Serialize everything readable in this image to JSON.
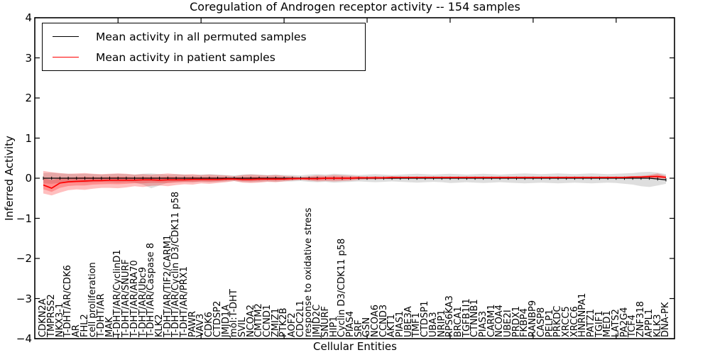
{
  "title": "Coregulation of Androgen receptor activity -- 154 samples",
  "axes": {
    "xlabel": "Cellular Entities",
    "ylabel": "Inferred Activity",
    "ytick_labels": [
      "4",
      "3",
      "2",
      "1",
      "0",
      "−1",
      "−2",
      "−3",
      "−4"
    ],
    "ylim": [
      -4,
      4
    ]
  },
  "legend": {
    "entries": [
      {
        "label": "Mean activity in all permuted samples",
        "color": "#000000"
      },
      {
        "label": "Mean activity in patient samples",
        "color": "#ff0000"
      }
    ]
  },
  "chart_data": {
    "type": "line",
    "title": "Coregulation of Androgen receptor activity -- 154 samples",
    "xlabel": "Cellular Entities",
    "ylabel": "Inferred Activity",
    "ylim": [
      -4,
      4
    ],
    "grid": false,
    "legend_position": "upper left",
    "inner_band_fraction": 0.5,
    "x_major_tick_indices": [
      9,
      19,
      29,
      39,
      49,
      59,
      69
    ],
    "categories": [
      "CDKN2A",
      "TMPRSS2",
      "NKX3-1",
      "T-DHT/AR/CDK6",
      "AR",
      "FHL2",
      "cell proliferation",
      "T-DHT/AR",
      "MAK",
      "T-DHT/AR/CyclinD1",
      "T-DHT/AR/SNURF",
      "T-DHT/AR/ARA70",
      "T-DHT/AR/Ubc9",
      "T-DHT/AR/Caspase 8",
      "KLK2",
      "T-DHT/AR/TIF2/CARM1",
      "T-DHT/AR/Cyclin D3/CDK11 p58",
      "T-DHT/AR/PRX1",
      "PAWR",
      "VAV3",
      "CDK6",
      "CTDSP2",
      "JMJD1A",
      "mol:T-DHT",
      "SVIL",
      "NCOA2",
      "CMTM2",
      "CCND1",
      "ZMIZ1",
      "PTK2B",
      "AOF2",
      "CDC2L1",
      "response to oxidative stress",
      "JMJD2C",
      "SNURF",
      "HIP1",
      "Cyclin D3/CDK11 p58",
      "PIAS4",
      "SRF",
      "GSN",
      "NCOA6",
      "CCND3",
      "AKT1",
      "PIAS1",
      "UBE3A",
      "TMF1",
      "CTDSP1",
      "UBA3",
      "NRIP1",
      "RPS6KA3",
      "BRCA1",
      "TGFB1I1",
      "CTNNB1",
      "PIAS3",
      "CARM1",
      "NCOA4",
      "UBE2I",
      "PRDX1",
      "FKBP4",
      "RANBP9",
      "CASP8",
      "PELP1",
      "PRKDC",
      "XRCC5",
      "XRCC6",
      "HNRNPA1",
      "PATZ1",
      "TGIF1",
      "MED1",
      "LATS2",
      "PA2G4",
      "TCF4",
      "ZNF318",
      "APPL1",
      "KLK3",
      "DNA-PK"
    ],
    "series": [
      {
        "name": "Mean activity in all permuted samples",
        "color": "#000000",
        "band_color": "rgba(0,0,0,0.13)",
        "values": [
          0,
          0,
          0,
          0,
          0,
          0,
          0,
          0,
          0,
          0,
          0,
          0,
          0,
          0,
          0,
          0,
          0,
          0,
          0,
          0,
          0,
          0,
          0,
          0,
          0,
          0,
          0,
          0,
          0,
          0,
          0,
          0,
          0,
          0,
          0,
          0,
          0,
          0,
          0,
          0,
          0,
          0,
          0,
          0,
          0,
          0,
          0,
          0,
          0,
          0,
          0,
          0,
          0,
          0,
          0,
          0,
          0,
          0,
          0,
          0,
          0,
          0,
          0,
          0,
          0,
          0,
          0,
          0,
          0,
          0,
          0,
          0,
          0,
          0,
          -0.02,
          -0.04
        ],
        "band_upper": [
          0.13,
          0.14,
          0.12,
          0.11,
          0.1,
          0.11,
          0.1,
          0.09,
          0.1,
          0.11,
          0.1,
          0.09,
          0.11,
          0.12,
          0.1,
          0.09,
          0.1,
          0.09,
          0.08,
          0.09,
          0.1,
          0.09,
          0.08,
          0.07,
          0.09,
          0.1,
          0.09,
          0.08,
          0.09,
          0.08,
          0.08,
          0.07,
          0.09,
          0.1,
          0.09,
          0.11,
          0.1,
          0.09,
          0.08,
          0.09,
          0.1,
          0.09,
          0.08,
          0.09,
          0.1,
          0.11,
          0.1,
          0.09,
          0.1,
          0.11,
          0.1,
          0.09,
          0.1,
          0.11,
          0.1,
          0.09,
          0.1,
          0.11,
          0.12,
          0.11,
          0.1,
          0.11,
          0.12,
          0.11,
          0.1,
          0.11,
          0.12,
          0.11,
          0.1,
          0.11,
          0.12,
          0.13,
          0.15,
          0.16,
          0.14,
          0.1
        ],
        "band_lower": [
          -0.13,
          -0.14,
          -0.12,
          -0.11,
          -0.1,
          -0.11,
          -0.1,
          -0.09,
          -0.1,
          -0.11,
          -0.1,
          -0.11,
          -0.16,
          -0.25,
          -0.18,
          -0.11,
          -0.1,
          -0.09,
          -0.1,
          -0.09,
          -0.1,
          -0.09,
          -0.08,
          -0.07,
          -0.09,
          -0.1,
          -0.09,
          -0.08,
          -0.09,
          -0.08,
          -0.08,
          -0.07,
          -0.09,
          -0.1,
          -0.09,
          -0.11,
          -0.1,
          -0.09,
          -0.08,
          -0.09,
          -0.1,
          -0.09,
          -0.08,
          -0.09,
          -0.1,
          -0.11,
          -0.1,
          -0.09,
          -0.1,
          -0.12,
          -0.11,
          -0.1,
          -0.11,
          -0.12,
          -0.11,
          -0.1,
          -0.11,
          -0.12,
          -0.13,
          -0.12,
          -0.11,
          -0.12,
          -0.13,
          -0.12,
          -0.11,
          -0.12,
          -0.13,
          -0.12,
          -0.11,
          -0.12,
          -0.14,
          -0.16,
          -0.2,
          -0.22,
          -0.18,
          -0.14
        ]
      },
      {
        "name": "Mean activity in patient samples",
        "color": "#ff0000",
        "band_color": "rgba(255,0,0,0.25)",
        "values": [
          -0.17,
          -0.25,
          -0.12,
          -0.09,
          -0.08,
          -0.07,
          -0.06,
          -0.06,
          -0.05,
          -0.05,
          -0.05,
          -0.05,
          -0.04,
          -0.04,
          -0.05,
          -0.04,
          -0.04,
          -0.04,
          -0.03,
          -0.03,
          -0.03,
          -0.03,
          -0.02,
          -0.02,
          -0.03,
          -0.03,
          -0.02,
          -0.02,
          -0.02,
          -0.02,
          -0.01,
          -0.01,
          -0.01,
          -0.01,
          0,
          0,
          0,
          0,
          0.01,
          0.01,
          0.01,
          0.01,
          0.02,
          0.02,
          0.02,
          0.02,
          0.02,
          0.02,
          0.02,
          0.02,
          0.02,
          0.02,
          0.02,
          0.02,
          0.02,
          0.02,
          0.02,
          0.02,
          0.02,
          0.02,
          0.02,
          0.02,
          0.02,
          0.02,
          0.02,
          0.02,
          0.02,
          0.02,
          0.02,
          0.02,
          0.02,
          0.03,
          0.03,
          0.04,
          0.04,
          0.02
        ],
        "band_upper": [
          0.18,
          0.15,
          0.13,
          0.11,
          0.12,
          0.13,
          0.11,
          0.1,
          0.11,
          0.12,
          0.11,
          0.09,
          0.1,
          0.09,
          0.1,
          0.12,
          0.1,
          0.09,
          0.1,
          0.08,
          0.09,
          0.08,
          0.07,
          0.05,
          0.08,
          0.09,
          0.08,
          0.07,
          0.08,
          0.06,
          0.05,
          0.03,
          0.05,
          0.07,
          0.06,
          0.08,
          0.07,
          0.06,
          0.05,
          0.04,
          0.05,
          0.04,
          0.05,
          0.04,
          0.04,
          0.04,
          0.04,
          0.04,
          0.04,
          0.04,
          0.04,
          0.04,
          0.04,
          0.04,
          0.04,
          0.04,
          0.04,
          0.04,
          0.04,
          0.04,
          0.04,
          0.04,
          0.04,
          0.04,
          0.04,
          0.04,
          0.04,
          0.04,
          0.04,
          0.04,
          0.04,
          0.05,
          0.06,
          0.08,
          0.12,
          0.06
        ],
        "band_lower": [
          -0.38,
          -0.43,
          -0.36,
          -0.3,
          -0.28,
          -0.29,
          -0.26,
          -0.24,
          -0.24,
          -0.25,
          -0.23,
          -0.2,
          -0.22,
          -0.19,
          -0.18,
          -0.2,
          -0.17,
          -0.15,
          -0.16,
          -0.13,
          -0.14,
          -0.12,
          -0.1,
          -0.07,
          -0.11,
          -0.12,
          -0.11,
          -0.09,
          -0.1,
          -0.08,
          -0.06,
          -0.04,
          -0.06,
          -0.08,
          -0.07,
          -0.08,
          -0.07,
          -0.06,
          -0.04,
          -0.03,
          -0.03,
          -0.02,
          -0.02,
          -0.01,
          -0.01,
          -0.01,
          0,
          0,
          0,
          0,
          0,
          0,
          0,
          0,
          0,
          0,
          0,
          0,
          0,
          0,
          0,
          0,
          0,
          0,
          0,
          0,
          0,
          0,
          0,
          0,
          0,
          0,
          0,
          -0.01,
          -0.01,
          -0.01
        ]
      }
    ]
  }
}
